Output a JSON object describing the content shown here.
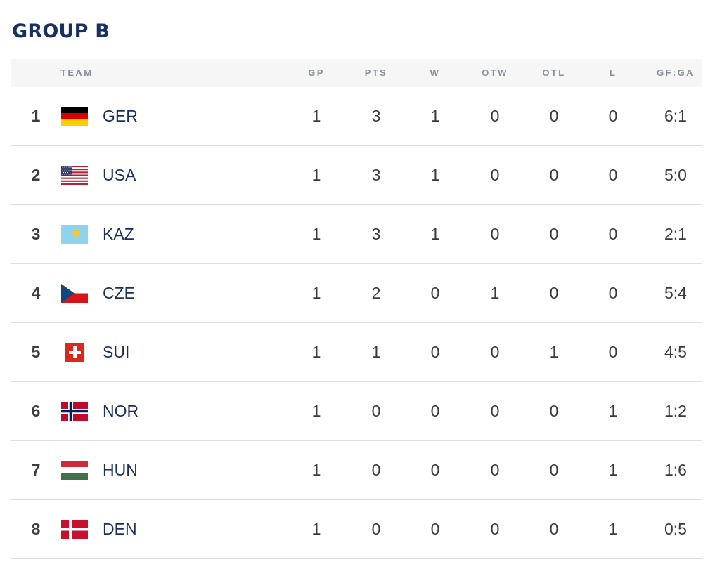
{
  "title": "GROUP B",
  "columns": {
    "team": "TEAM",
    "gp": "GP",
    "pts": "PTS",
    "w": "W",
    "otw": "OTW",
    "otl": "OTL",
    "l": "L",
    "gfga": "GF:GA"
  },
  "rows": [
    {
      "rank": "1",
      "team": "GER",
      "flag": "germany-flag",
      "gp": "1",
      "pts": "3",
      "w": "1",
      "otw": "0",
      "otl": "0",
      "l": "0",
      "gfga": "6:1"
    },
    {
      "rank": "2",
      "team": "USA",
      "flag": "usa-flag",
      "gp": "1",
      "pts": "3",
      "w": "1",
      "otw": "0",
      "otl": "0",
      "l": "0",
      "gfga": "5:0"
    },
    {
      "rank": "3",
      "team": "KAZ",
      "flag": "kazakhstan-flag",
      "gp": "1",
      "pts": "3",
      "w": "1",
      "otw": "0",
      "otl": "0",
      "l": "0",
      "gfga": "2:1"
    },
    {
      "rank": "4",
      "team": "CZE",
      "flag": "czech-flag",
      "gp": "1",
      "pts": "2",
      "w": "0",
      "otw": "1",
      "otl": "0",
      "l": "0",
      "gfga": "5:4"
    },
    {
      "rank": "5",
      "team": "SUI",
      "flag": "switzerland-flag",
      "gp": "1",
      "pts": "1",
      "w": "0",
      "otw": "0",
      "otl": "1",
      "l": "0",
      "gfga": "4:5"
    },
    {
      "rank": "6",
      "team": "NOR",
      "flag": "norway-flag",
      "gp": "1",
      "pts": "0",
      "w": "0",
      "otw": "0",
      "otl": "0",
      "l": "1",
      "gfga": "1:2"
    },
    {
      "rank": "7",
      "team": "HUN",
      "flag": "hungary-flag",
      "gp": "1",
      "pts": "0",
      "w": "0",
      "otw": "0",
      "otl": "0",
      "l": "1",
      "gfga": "1:6"
    },
    {
      "rank": "8",
      "team": "DEN",
      "flag": "denmark-flag",
      "gp": "1",
      "pts": "0",
      "w": "0",
      "otw": "0",
      "otl": "0",
      "l": "1",
      "gfga": "0:5"
    }
  ],
  "colors": {
    "title": "#16305f",
    "team_text": "#1b2f5c",
    "header_bg": "#f6f6f6",
    "header_text": "#8a8e96",
    "row_divider": "#dedede"
  }
}
